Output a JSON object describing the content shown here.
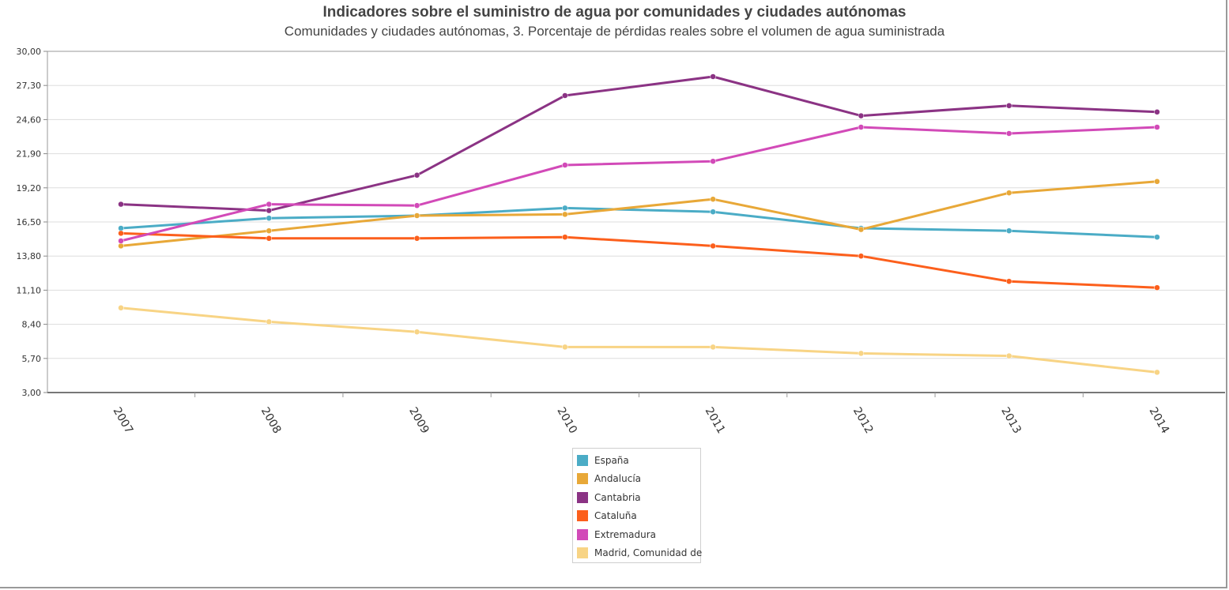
{
  "chart_data": {
    "type": "line",
    "title": "Indicadores sobre el suministro de agua por comunidades y ciudades autónomas",
    "subtitle": "Comunidades y ciudades autónomas, 3. Porcentaje de pérdidas reales sobre el volumen de agua suministrada",
    "xlabel": "",
    "ylabel": "",
    "ylim": [
      3.0,
      30.0
    ],
    "y_ticks": [
      "3,00",
      "5,70",
      "8,40",
      "11,10",
      "13,80",
      "16,50",
      "19,20",
      "21,90",
      "24,60",
      "27,30",
      "30,00"
    ],
    "grid": true,
    "legend_position": "bottom-center",
    "categories": [
      "2007",
      "2008",
      "2009",
      "2010",
      "2011",
      "2012",
      "2013",
      "2014"
    ],
    "series": [
      {
        "name": "España",
        "color": "#4bacc6",
        "values": [
          16.0,
          16.8,
          17.0,
          17.6,
          17.3,
          16.0,
          15.8,
          15.3
        ]
      },
      {
        "name": "Andalucía",
        "color": "#e8a838",
        "values": [
          14.6,
          15.8,
          17.0,
          17.1,
          18.3,
          15.9,
          18.8,
          19.7
        ]
      },
      {
        "name": "Cantabria",
        "color": "#8b3384",
        "values": [
          17.9,
          17.4,
          20.2,
          26.5,
          28.0,
          24.9,
          25.7,
          25.2
        ]
      },
      {
        "name": "Cataluña",
        "color": "#fc5f1c",
        "values": [
          15.6,
          15.2,
          15.2,
          15.3,
          14.6,
          13.8,
          11.8,
          11.3
        ]
      },
      {
        "name": "Extremadura",
        "color": "#d24ab8",
        "values": [
          15.0,
          17.9,
          17.8,
          21.0,
          21.3,
          24.0,
          23.5,
          24.0
        ]
      },
      {
        "name": "Madrid, Comunidad de",
        "color": "#f8d485",
        "values": [
          9.7,
          8.6,
          7.8,
          6.6,
          6.6,
          6.1,
          5.9,
          4.6
        ]
      }
    ]
  }
}
